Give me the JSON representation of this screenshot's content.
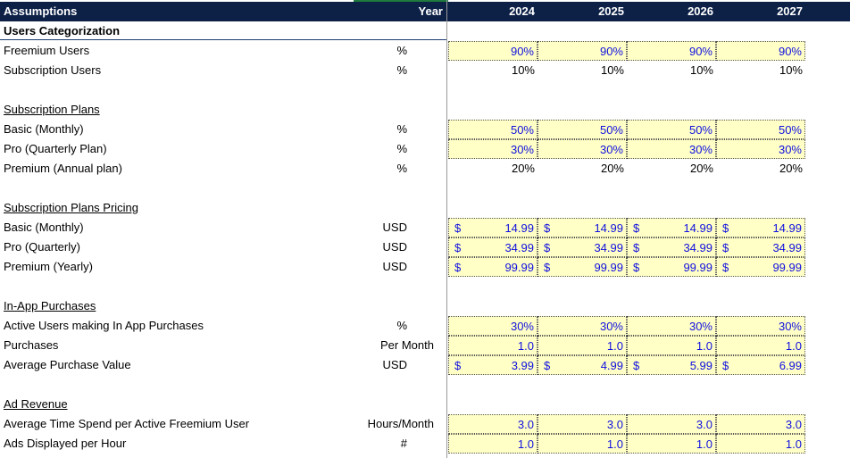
{
  "header": {
    "title": "Assumptions",
    "year_label": "Year",
    "years": [
      "2024",
      "2025",
      "2026",
      "2027"
    ]
  },
  "sections": [
    {
      "title": "Users Categorization",
      "title_style": "bold",
      "row": 1,
      "rows": [
        {
          "row": 2,
          "label": "Freemium Users",
          "unit": "%",
          "style": "input",
          "dollar": false,
          "values": [
            "90%",
            "90%",
            "90%",
            "90%"
          ]
        },
        {
          "row": 3,
          "label": "Subscription Users",
          "unit": "%",
          "style": "calc",
          "dollar": false,
          "values": [
            "10%",
            "10%",
            "10%",
            "10%"
          ]
        }
      ]
    },
    {
      "title": "Subscription Plans",
      "title_style": "underline",
      "row": 5,
      "rows": [
        {
          "row": 6,
          "label": "Basic (Monthly)",
          "unit": "%",
          "style": "input",
          "dollar": false,
          "values": [
            "50%",
            "50%",
            "50%",
            "50%"
          ]
        },
        {
          "row": 7,
          "label": "Pro (Quarterly Plan)",
          "unit": "%",
          "style": "input",
          "dollar": false,
          "values": [
            "30%",
            "30%",
            "30%",
            "30%"
          ]
        },
        {
          "row": 8,
          "label": "Premium (Annual plan)",
          "unit": "%",
          "style": "calc",
          "dollar": false,
          "values": [
            "20%",
            "20%",
            "20%",
            "20%"
          ]
        }
      ]
    },
    {
      "title": "Subscription Plans Pricing",
      "title_style": "underline",
      "row": 10,
      "rows": [
        {
          "row": 11,
          "label": "Basic (Monthly)",
          "unit": "USD",
          "style": "input",
          "dollar": true,
          "values": [
            "14.99",
            "14.99",
            "14.99",
            "14.99"
          ]
        },
        {
          "row": 12,
          "label": "Pro (Quarterly)",
          "unit": "USD",
          "style": "input",
          "dollar": true,
          "values": [
            "34.99",
            "34.99",
            "34.99",
            "34.99"
          ]
        },
        {
          "row": 13,
          "label": "Premium (Yearly)",
          "unit": "USD",
          "style": "input",
          "dollar": true,
          "values": [
            "99.99",
            "99.99",
            "99.99",
            "99.99"
          ]
        }
      ]
    },
    {
      "title": "In-App Purchases",
      "title_style": "underline",
      "row": 15,
      "rows": [
        {
          "row": 16,
          "label": "Active Users making In App Purchases",
          "unit": "%",
          "style": "input",
          "dollar": false,
          "values": [
            "30%",
            "30%",
            "30%",
            "30%"
          ]
        },
        {
          "row": 17,
          "label": "Purchases",
          "unit": "Per Month",
          "style": "input",
          "dollar": false,
          "values": [
            "1.0",
            "1.0",
            "1.0",
            "1.0"
          ]
        },
        {
          "row": 18,
          "label": "Average Purchase Value",
          "unit": "USD",
          "style": "input",
          "dollar": true,
          "values": [
            "3.99",
            "4.99",
            "5.99",
            "6.99"
          ]
        }
      ]
    },
    {
      "title": "Ad Revenue",
      "title_style": "underline",
      "row": 20,
      "rows": [
        {
          "row": 21,
          "label": "Average Time Spend per Active Freemium User",
          "unit": "Hours/Month",
          "style": "input",
          "dollar": false,
          "values": [
            "3.0",
            "3.0",
            "3.0",
            "3.0"
          ]
        },
        {
          "row": 22,
          "label": "Ads Displayed per Hour",
          "unit": "#",
          "style": "input",
          "dollar": false,
          "values": [
            "1.0",
            "1.0",
            "1.0",
            "1.0"
          ]
        }
      ]
    }
  ],
  "dollar_sign": "$",
  "colors": {
    "header_bg": "#0d2147",
    "input_bg": "#ffffc6",
    "input_text": "#1010e0"
  }
}
